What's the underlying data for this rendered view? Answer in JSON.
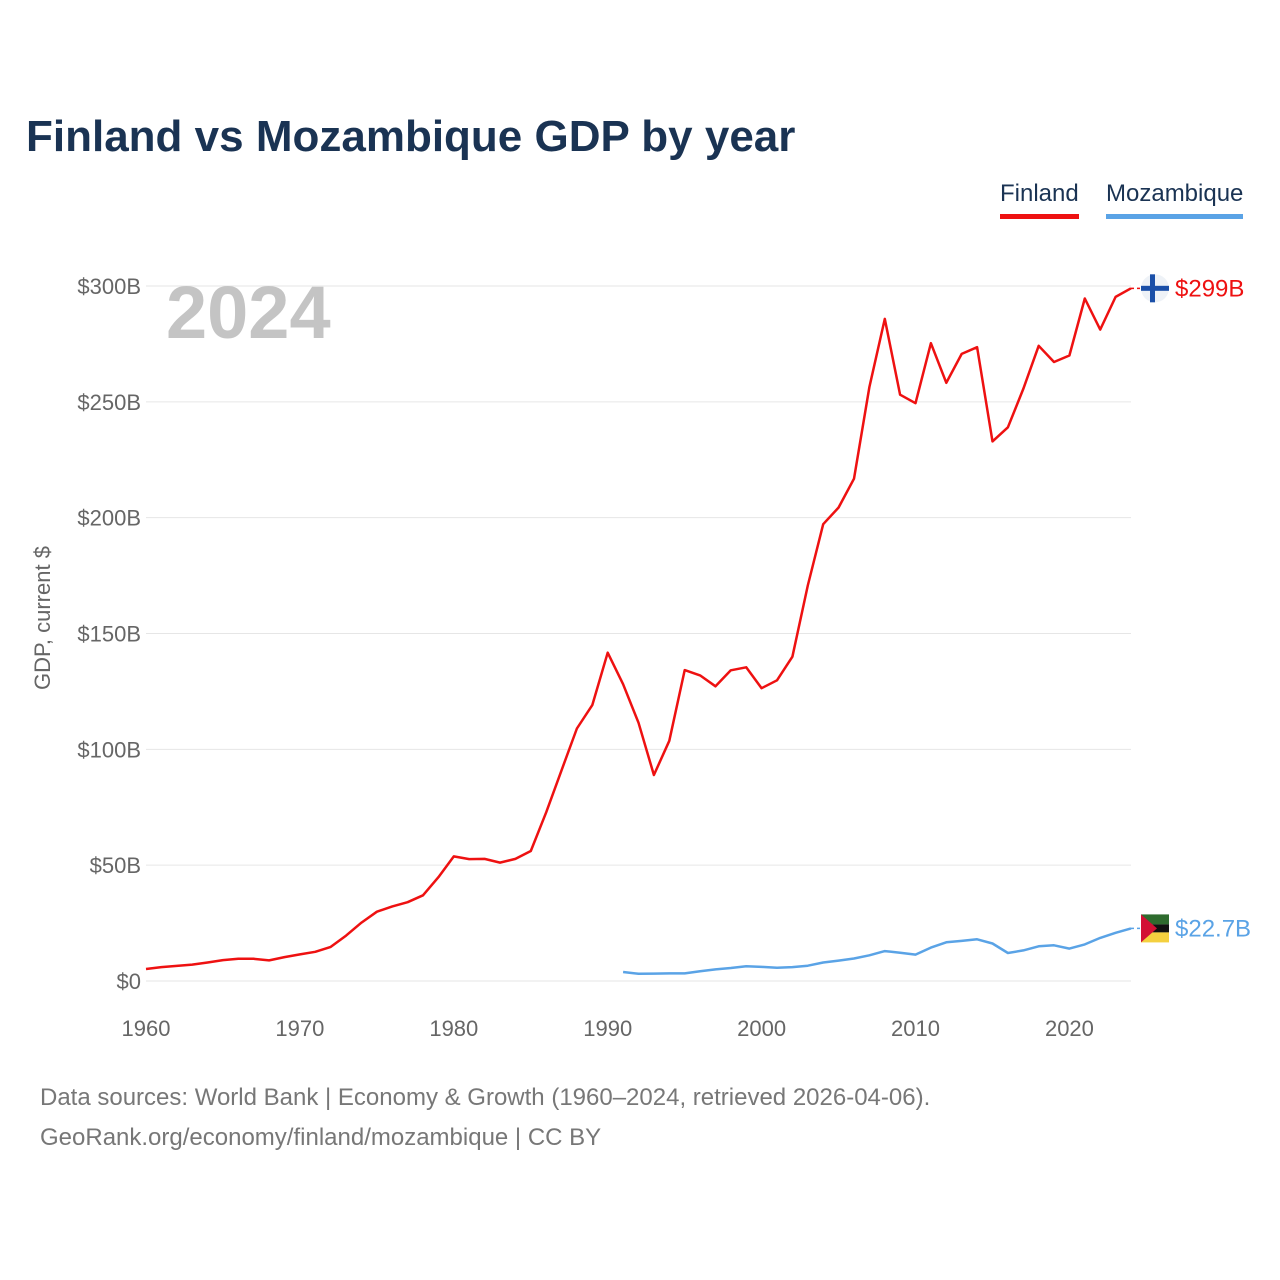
{
  "title": "Finland vs Mozambique GDP by year",
  "legend": [
    {
      "name": "Finland",
      "color": "#ee1111"
    },
    {
      "name": "Mozambique",
      "color": "#5aa3e6"
    }
  ],
  "year_label": "2024",
  "footer": {
    "line1": "Data sources: World Bank | Economy & Growth (1960–2024, retrieved 2026-04-06).",
    "line2": "GeoRank.org/economy/finland/mozambique | CC BY"
  },
  "chart_data": {
    "type": "line",
    "title": "Finland vs Mozambique GDP by year",
    "xlabel": "",
    "ylabel": "GDP, current $",
    "xlim": [
      1960,
      2024
    ],
    "ylim": [
      0,
      300
    ],
    "y_unit": "billions of current US$",
    "x_ticks": [
      1960,
      1970,
      1980,
      1990,
      2000,
      2010,
      2020
    ],
    "y_ticks": [
      0,
      50,
      100,
      150,
      200,
      250,
      300
    ],
    "y_tick_labels": [
      "$0",
      "$50B",
      "$100B",
      "$150B",
      "$200B",
      "$250B",
      "$300B"
    ],
    "grid": true,
    "series": [
      {
        "name": "Finland",
        "color": "#ee1111",
        "end_label": "$299B",
        "x": [
          1960,
          1961,
          1962,
          1963,
          1964,
          1965,
          1966,
          1967,
          1968,
          1969,
          1970,
          1971,
          1972,
          1973,
          1974,
          1975,
          1976,
          1977,
          1978,
          1979,
          1980,
          1981,
          1982,
          1983,
          1984,
          1985,
          1986,
          1987,
          1988,
          1989,
          1990,
          1991,
          1992,
          1993,
          1994,
          1995,
          1996,
          1997,
          1998,
          1999,
          2000,
          2001,
          2002,
          2003,
          2004,
          2005,
          2006,
          2007,
          2008,
          2009,
          2010,
          2011,
          2012,
          2013,
          2014,
          2015,
          2016,
          2017,
          2018,
          2019,
          2020,
          2021,
          2022,
          2023,
          2024
        ],
        "values": [
          5.2,
          6.0,
          6.5,
          7.1,
          8.0,
          9.0,
          9.6,
          9.6,
          8.9,
          10.3,
          11.5,
          12.6,
          14.7,
          19.6,
          25.2,
          29.9,
          32.2,
          34.0,
          37.0,
          44.8,
          53.8,
          52.6,
          52.7,
          51.1,
          52.7,
          56.1,
          72.8,
          90.9,
          109.0,
          119.1,
          141.7,
          128.1,
          111.5,
          88.9,
          103.7,
          134.2,
          131.9,
          127.2,
          134.1,
          135.4,
          126.4,
          129.8,
          140.0,
          170.7,
          197.2,
          204.4,
          216.8,
          256.4,
          285.8,
          253.1,
          249.4,
          275.3,
          258.2,
          270.7,
          273.6,
          232.9,
          239.0,
          255.6,
          274.2,
          267.2,
          270.0,
          294.6,
          281.2,
          295.3,
          299.0
        ]
      },
      {
        "name": "Mozambique",
        "color": "#5aa3e6",
        "end_label": "$22.7B",
        "x": [
          1991,
          1992,
          1993,
          1994,
          1995,
          1996,
          1997,
          1998,
          1999,
          2000,
          2001,
          2002,
          2003,
          2004,
          2005,
          2006,
          2007,
          2008,
          2009,
          2010,
          2011,
          2012,
          2013,
          2014,
          2015,
          2016,
          2017,
          2018,
          2019,
          2020,
          2021,
          2022,
          2023,
          2024
        ],
        "values": [
          3.9,
          3.1,
          3.2,
          3.3,
          3.3,
          4.2,
          5.0,
          5.6,
          6.4,
          6.1,
          5.7,
          6.0,
          6.6,
          8.0,
          8.8,
          9.7,
          11.1,
          12.9,
          12.2,
          11.4,
          14.4,
          16.7,
          17.3,
          18.0,
          16.2,
          12.1,
          13.2,
          15.0,
          15.4,
          14.0,
          15.8,
          18.6,
          20.8,
          22.7
        ]
      }
    ]
  }
}
